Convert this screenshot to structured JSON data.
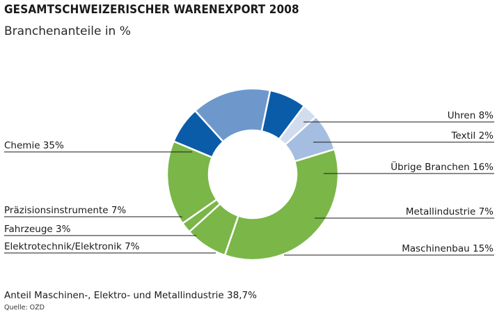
{
  "header": {
    "title": "GESAMTSCHWEIZERISCHER WARENEXPORT 2008",
    "subtitle": "Branchenanteile in %"
  },
  "chart_data": {
    "type": "pie",
    "variant": "donut",
    "slices": [
      {
        "name": "Chemie",
        "label": "Chemie 35%",
        "value": 35,
        "color": "#7ab648"
      },
      {
        "name": "Uhren",
        "label": "Uhren 8%",
        "value": 8,
        "color": "#7ab648"
      },
      {
        "name": "Textil",
        "label": "Textil 2%",
        "value": 2,
        "color": "#7ab648"
      },
      {
        "name": "Übrige Branchen",
        "label": "Übrige Branchen 16%",
        "value": 16,
        "color": "#7ab648"
      },
      {
        "name": "Metallindustrie",
        "label": "Metallindustrie 7%",
        "value": 7,
        "color": "#0a5ca8"
      },
      {
        "name": "Maschinenbau",
        "label": "Maschinenbau 15%",
        "value": 15,
        "color": "#6e98cc"
      },
      {
        "name": "Elektrotechnik/Elektronik",
        "label": "Elektrotechnik/Elektronik 7%",
        "value": 7,
        "color": "#0a5ca8"
      },
      {
        "name": "Fahrzeuge",
        "label": "Fahrzeuge 3%",
        "value": 3,
        "color": "#d2dcef"
      },
      {
        "name": "Präzisionsinstrumente",
        "label": "Präzisionsinstrumente 7%",
        "value": 7,
        "color": "#a5bde0"
      }
    ]
  },
  "footer": {
    "note": "Anteil Maschinen-, Elektro- und Metallindustrie 38,7%",
    "source": "Quelle: OZD"
  }
}
